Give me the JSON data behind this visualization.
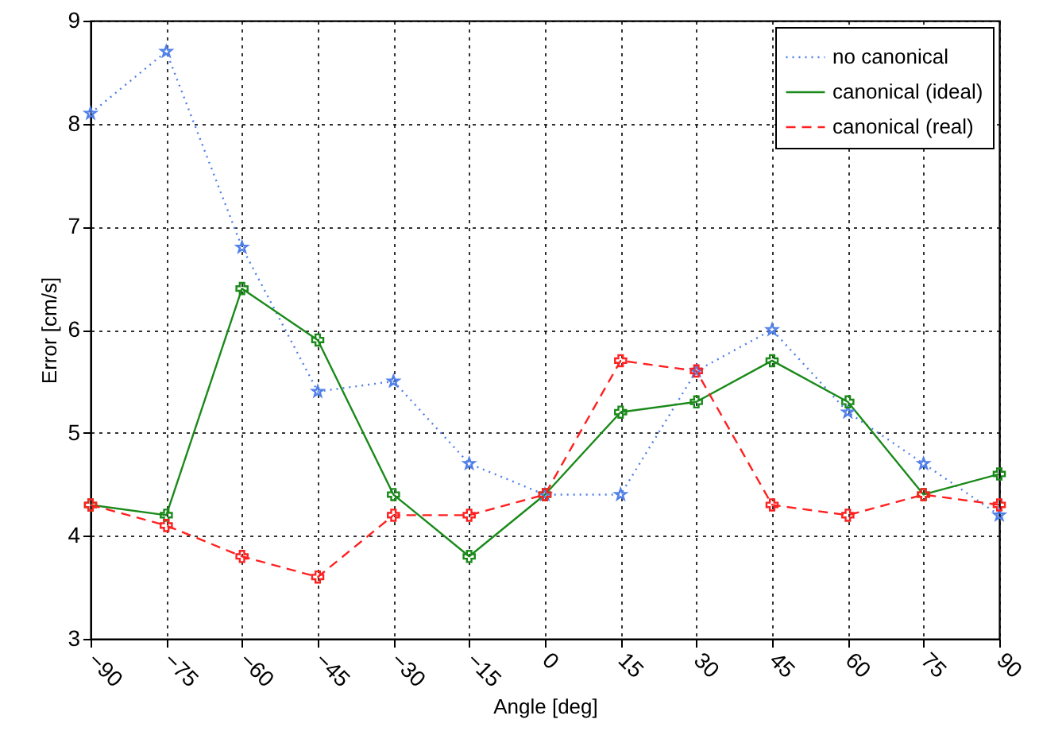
{
  "chart_data": {
    "type": "line",
    "xlabel": "Angle [deg]",
    "ylabel": "Error [cm/s]",
    "x": [
      -90,
      -75,
      -60,
      -45,
      -30,
      -15,
      0,
      15,
      30,
      45,
      60,
      75,
      90
    ],
    "xlim": [
      -90,
      90
    ],
    "xticks": [
      -90,
      -75,
      -60,
      -45,
      -30,
      -15,
      0,
      15,
      30,
      45,
      60,
      75,
      90
    ],
    "ylim": [
      3,
      9
    ],
    "yticks": [
      3,
      4,
      5,
      6,
      7,
      8,
      9
    ],
    "grid": true,
    "legend": "top right",
    "series": [
      {
        "name": "no canonical",
        "color": "#4f7fe8",
        "line_style": "dotted",
        "marker": "star",
        "values": [
          8.1,
          8.7,
          6.8,
          5.4,
          5.5,
          4.7,
          4.4,
          4.4,
          5.6,
          6.0,
          5.2,
          4.7,
          4.2
        ]
      },
      {
        "name": "canonical (ideal)",
        "color": "#1a8a1a",
        "line_style": "solid",
        "marker": "cross",
        "values": [
          4.3,
          4.2,
          6.4,
          5.9,
          4.4,
          3.8,
          4.4,
          5.2,
          5.3,
          5.7,
          5.3,
          4.4,
          4.6
        ]
      },
      {
        "name": "canonical (real)",
        "color": "#ff2020",
        "line_style": "dashed",
        "marker": "cross",
        "values": [
          4.3,
          4.1,
          3.8,
          3.6,
          4.2,
          4.2,
          4.4,
          5.7,
          5.6,
          4.3,
          4.2,
          4.4,
          4.3
        ]
      }
    ]
  }
}
